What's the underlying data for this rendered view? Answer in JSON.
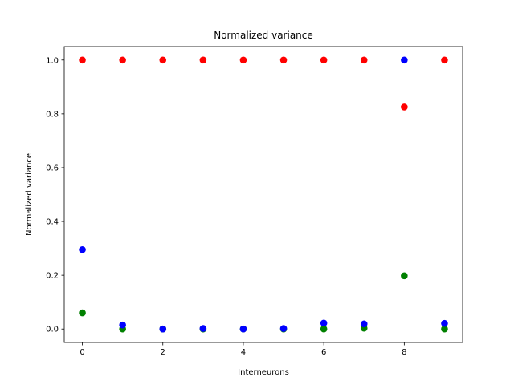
{
  "chart_data": {
    "type": "scatter",
    "title": "Normalized variance",
    "xlabel": "Interneurons",
    "ylabel": "Normalized variance",
    "xlim": [
      -0.45,
      9.45
    ],
    "ylim": [
      -0.05,
      1.05
    ],
    "xticks": [
      0,
      2,
      4,
      6,
      8
    ],
    "yticks": [
      0.0,
      0.2,
      0.4,
      0.6,
      0.8,
      1.0
    ],
    "xtick_labels": [
      "0",
      "2",
      "4",
      "6",
      "8"
    ],
    "ytick_labels": [
      "0.0",
      "0.2",
      "0.4",
      "0.6",
      "0.8",
      "1.0"
    ],
    "grid": false,
    "x": [
      0,
      1,
      2,
      3,
      4,
      5,
      6,
      7,
      8,
      9
    ],
    "series": [
      {
        "color": "#ff0000",
        "values": [
          1.0,
          1.0,
          1.0,
          1.0,
          1.0,
          1.0,
          1.0,
          1.0,
          0.825,
          1.0
        ]
      },
      {
        "color": "#008000",
        "values": [
          0.06,
          0.0,
          0.0,
          0.0,
          0.0,
          0.0,
          0.0,
          0.003,
          0.198,
          0.0
        ]
      },
      {
        "color": "#0000ff",
        "values": [
          0.295,
          0.015,
          0.0,
          0.002,
          0.0,
          0.002,
          0.022,
          0.019,
          1.0,
          0.021
        ]
      }
    ]
  }
}
